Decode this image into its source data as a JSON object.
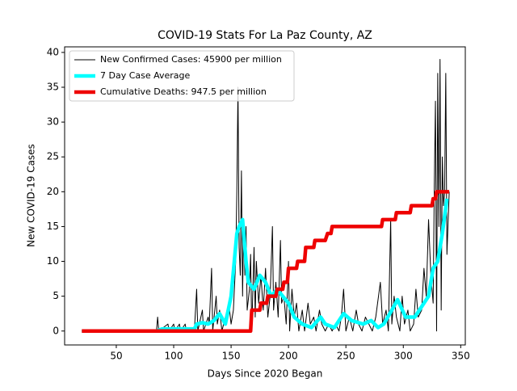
{
  "chart_data": {
    "type": "line",
    "title": "COVID-19 Stats For La Paz County, AZ",
    "x_label": "Days Since 2020 Began",
    "y_label": "New COVID-19 Cases",
    "xlim": [
      5,
      354
    ],
    "ylim": [
      -2,
      40.8
    ],
    "xticks": [
      50,
      100,
      150,
      200,
      250,
      300,
      350
    ],
    "yticks": [
      0,
      5,
      10,
      15,
      20,
      25,
      30,
      35,
      40
    ],
    "legend": "upper left",
    "series": [
      {
        "name": "New Confirmed Cases: 45900 per million",
        "color": "#000000",
        "width": 1,
        "x": [
          20,
          85,
          86,
          87,
          95,
          96,
          100,
          101,
          105,
          106,
          110,
          111,
          118,
          120,
          121,
          125,
          126,
          130,
          131,
          133,
          134,
          137,
          138,
          140,
          142,
          145,
          148,
          150,
          152,
          154,
          155,
          156,
          157,
          158,
          159,
          160,
          161,
          162,
          163,
          164,
          166,
          167,
          168,
          170,
          171,
          172,
          174,
          176,
          178,
          180,
          182,
          184,
          186,
          187,
          189,
          191,
          193,
          194,
          196,
          198,
          200,
          201,
          203,
          205,
          207,
          209,
          212,
          214,
          217,
          219,
          222,
          224,
          227,
          229,
          232,
          235,
          238,
          241,
          244,
          246,
          248,
          250,
          253,
          256,
          259,
          261,
          264,
          267,
          270,
          273,
          276,
          280,
          282,
          285,
          287,
          289,
          290,
          292,
          294,
          297,
          299,
          301,
          304,
          306,
          309,
          311,
          313,
          316,
          318,
          320,
          322,
          324,
          326,
          327,
          328,
          329,
          330,
          331,
          332,
          333,
          334,
          335,
          336,
          337,
          338,
          340
        ],
        "values": [
          0,
          0,
          2,
          0,
          1,
          0,
          1,
          0,
          1,
          0,
          1,
          0,
          0,
          6,
          0,
          3,
          0,
          2,
          1,
          9,
          0,
          5,
          1,
          3,
          0,
          2,
          4,
          1,
          3,
          10,
          20,
          35,
          12,
          8,
          23,
          5,
          16,
          8,
          15,
          3,
          6,
          11,
          0,
          12,
          2,
          10,
          4,
          8,
          3,
          9,
          2,
          5,
          15,
          3,
          7,
          2,
          13,
          4,
          5,
          1,
          10,
          0,
          6,
          2,
          4,
          0,
          3,
          0,
          4,
          1,
          2,
          0,
          3,
          1,
          0,
          1,
          0,
          1,
          0,
          2,
          6,
          0,
          2,
          0,
          3,
          1,
          0,
          2,
          1,
          0,
          2,
          7,
          1,
          3,
          0,
          16,
          1,
          5,
          2,
          0,
          5,
          1,
          3,
          0,
          1,
          6,
          2,
          3,
          9,
          5,
          16,
          8,
          4,
          21,
          33,
          0,
          37,
          15,
          39,
          3,
          25,
          18,
          20,
          37,
          11,
          20
        ]
      },
      {
        "name": "7 Day Case Average",
        "color": "#00ffff",
        "width": 4.5,
        "x": [
          20,
          85,
          90,
          118,
          120,
          125,
          130,
          135,
          140,
          145,
          150,
          155,
          157,
          160,
          163,
          165,
          170,
          175,
          180,
          185,
          190,
          195,
          200,
          205,
          212,
          220,
          228,
          232,
          240,
          248,
          255,
          265,
          272,
          278,
          283,
          290,
          295,
          302,
          310,
          318,
          322,
          326,
          330,
          334,
          338
        ],
        "values": [
          0,
          0,
          0.3,
          0.3,
          1,
          1.2,
          1,
          1.5,
          2.5,
          1,
          5,
          14,
          15,
          16,
          10,
          7,
          6,
          8,
          7,
          5,
          6,
          5,
          4,
          2,
          1,
          0.5,
          2,
          1,
          0.5,
          2.5,
          1.5,
          1,
          1.5,
          0.5,
          1,
          3,
          4.5,
          2,
          2,
          4,
          5,
          9,
          10,
          14,
          19
        ]
      },
      {
        "name": "Cumulative Deaths: 947.5 per million",
        "color": "#ee0000",
        "width": 4.5,
        "x": [
          20,
          167,
          168,
          175,
          176,
          181,
          182,
          189,
          190,
          195,
          196,
          199,
          200,
          207,
          208,
          214,
          215,
          222,
          223,
          232,
          234,
          237,
          238,
          281,
          282,
          293,
          294,
          306,
          307,
          325,
          326,
          328,
          329,
          340
        ],
        "values": [
          0,
          0,
          3,
          3,
          4,
          4,
          5,
          5,
          6,
          6,
          7,
          7,
          9,
          9,
          10,
          10,
          12,
          12,
          13,
          13,
          14,
          14,
          15,
          15,
          16,
          16,
          17,
          17,
          18,
          18,
          19,
          19,
          20,
          20
        ]
      }
    ]
  }
}
